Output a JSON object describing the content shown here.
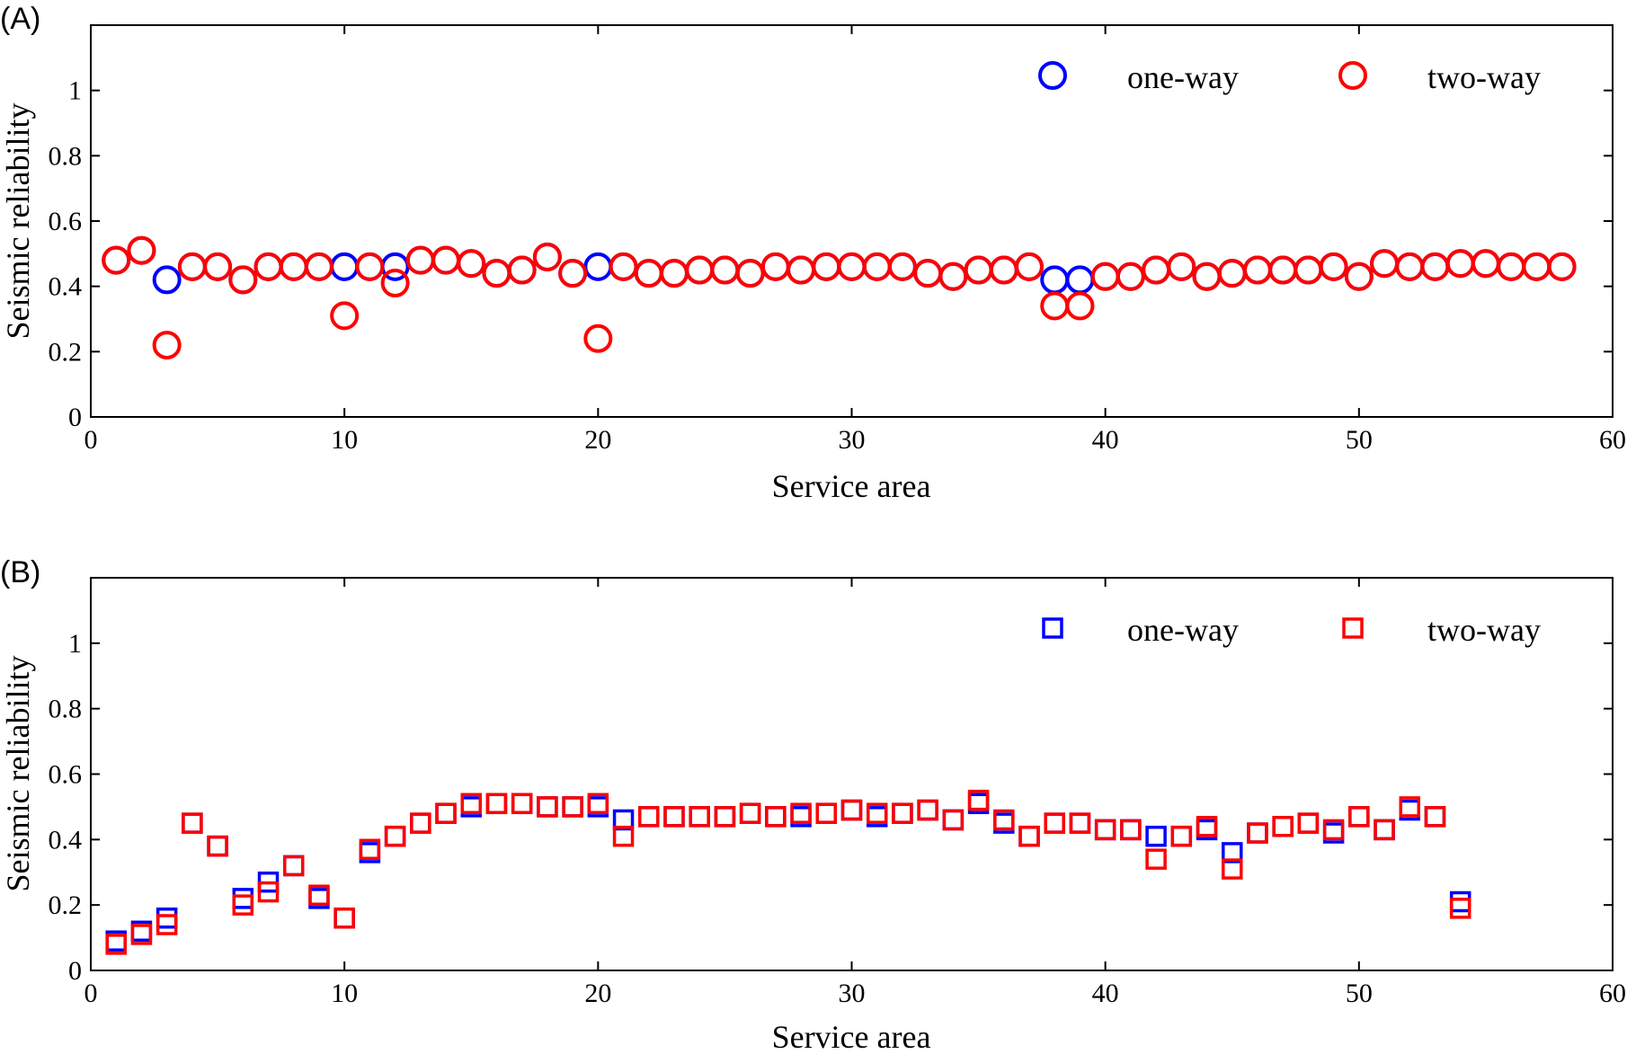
{
  "colors": {
    "one_way": "#0000ff",
    "two_way": "#ff0000"
  },
  "chart_data": [
    {
      "type": "scatter",
      "panel_label": "(A)",
      "marker": "circle",
      "xlabel": "Service area",
      "ylabel": "Seismic reliability",
      "xlim": [
        0,
        60
      ],
      "ylim": [
        0,
        1.2
      ],
      "xticks": [
        0,
        10,
        20,
        30,
        40,
        50,
        60
      ],
      "yticks": [
        0,
        0.2,
        0.4,
        0.6,
        0.8,
        1
      ],
      "grid": false,
      "legend_position": "top-right",
      "series": [
        {
          "name": "one-way",
          "color": "#0000ff",
          "x": [
            1,
            2,
            3,
            4,
            5,
            6,
            7,
            8,
            9,
            10,
            11,
            12,
            13,
            14,
            15,
            16,
            17,
            18,
            19,
            20,
            21,
            22,
            23,
            24,
            25,
            26,
            27,
            28,
            29,
            30,
            31,
            32,
            33,
            34,
            35,
            36,
            37,
            38,
            39,
            40,
            41,
            42,
            43,
            44,
            45,
            46,
            47,
            48,
            49,
            50,
            51,
            52,
            53,
            54,
            55,
            56,
            57,
            58
          ],
          "y": [
            0.48,
            0.51,
            0.42,
            0.46,
            0.46,
            0.42,
            0.46,
            0.46,
            0.46,
            0.46,
            0.46,
            0.46,
            0.48,
            0.48,
            0.47,
            0.44,
            0.45,
            0.49,
            0.44,
            0.46,
            0.46,
            0.44,
            0.44,
            0.45,
            0.45,
            0.44,
            0.46,
            0.45,
            0.46,
            0.46,
            0.46,
            0.46,
            0.44,
            0.43,
            0.45,
            0.45,
            0.46,
            0.42,
            0.42,
            0.43,
            0.43,
            0.45,
            0.46,
            0.43,
            0.44,
            0.45,
            0.45,
            0.45,
            0.46,
            0.43,
            0.47,
            0.46,
            0.46,
            0.47,
            0.47,
            0.46,
            0.46,
            0.46
          ]
        },
        {
          "name": "two-way",
          "color": "#ff0000",
          "x": [
            1,
            2,
            3,
            4,
            5,
            6,
            7,
            8,
            9,
            10,
            11,
            12,
            13,
            14,
            15,
            16,
            17,
            18,
            19,
            20,
            21,
            22,
            23,
            24,
            25,
            26,
            27,
            28,
            29,
            30,
            31,
            32,
            33,
            34,
            35,
            36,
            37,
            38,
            39,
            40,
            41,
            42,
            43,
            44,
            45,
            46,
            47,
            48,
            49,
            50,
            51,
            52,
            53,
            54,
            55,
            56,
            57,
            58
          ],
          "y": [
            0.48,
            0.51,
            0.22,
            0.46,
            0.46,
            0.42,
            0.46,
            0.46,
            0.46,
            0.31,
            0.46,
            0.41,
            0.48,
            0.48,
            0.47,
            0.44,
            0.45,
            0.49,
            0.44,
            0.24,
            0.46,
            0.44,
            0.44,
            0.45,
            0.45,
            0.44,
            0.46,
            0.45,
            0.46,
            0.46,
            0.46,
            0.46,
            0.44,
            0.43,
            0.45,
            0.45,
            0.46,
            0.34,
            0.34,
            0.43,
            0.43,
            0.45,
            0.46,
            0.43,
            0.44,
            0.45,
            0.45,
            0.45,
            0.46,
            0.43,
            0.47,
            0.46,
            0.46,
            0.47,
            0.47,
            0.46,
            0.46,
            0.46
          ]
        }
      ]
    },
    {
      "type": "scatter",
      "panel_label": "(B)",
      "marker": "square",
      "xlabel": "Service area",
      "ylabel": "Seismic reliability",
      "xlim": [
        0,
        60
      ],
      "ylim": [
        0,
        1.2
      ],
      "xticks": [
        0,
        10,
        20,
        30,
        40,
        50,
        60
      ],
      "yticks": [
        0,
        0.2,
        0.4,
        0.6,
        0.8,
        1
      ],
      "grid": false,
      "legend_position": "top-right",
      "series": [
        {
          "name": "one-way",
          "color": "#0000ff",
          "x": [
            1,
            2,
            3,
            4,
            5,
            6,
            7,
            8,
            9,
            10,
            11,
            12,
            13,
            14,
            15,
            16,
            17,
            18,
            19,
            20,
            21,
            22,
            23,
            24,
            25,
            26,
            27,
            28,
            29,
            30,
            31,
            32,
            33,
            34,
            35,
            36,
            37,
            38,
            39,
            40,
            41,
            42,
            43,
            44,
            45,
            46,
            47,
            48,
            49,
            50,
            51,
            52,
            53,
            54
          ],
          "y": [
            0.09,
            0.12,
            0.16,
            0.45,
            0.38,
            0.22,
            0.27,
            0.32,
            0.22,
            0.16,
            0.36,
            0.41,
            0.45,
            0.48,
            0.5,
            0.51,
            0.51,
            0.5,
            0.5,
            0.5,
            0.46,
            0.47,
            0.47,
            0.47,
            0.47,
            0.48,
            0.47,
            0.47,
            0.48,
            0.49,
            0.47,
            0.48,
            0.49,
            0.46,
            0.51,
            0.45,
            0.41,
            0.45,
            0.45,
            0.43,
            0.43,
            0.41,
            0.41,
            0.43,
            0.36,
            0.42,
            0.44,
            0.45,
            0.42,
            0.47,
            0.43,
            0.49,
            0.47,
            0.21
          ]
        },
        {
          "name": "two-way",
          "color": "#ff0000",
          "x": [
            1,
            2,
            3,
            4,
            5,
            6,
            7,
            8,
            9,
            10,
            11,
            12,
            13,
            14,
            15,
            16,
            17,
            18,
            19,
            20,
            21,
            22,
            23,
            24,
            25,
            26,
            27,
            28,
            29,
            30,
            31,
            32,
            33,
            34,
            35,
            36,
            37,
            38,
            39,
            40,
            41,
            42,
            43,
            44,
            45,
            46,
            47,
            48,
            49,
            50,
            51,
            52,
            53,
            54
          ],
          "y": [
            0.08,
            0.11,
            0.14,
            0.45,
            0.38,
            0.2,
            0.24,
            0.32,
            0.23,
            0.16,
            0.37,
            0.41,
            0.45,
            0.48,
            0.51,
            0.51,
            0.51,
            0.5,
            0.5,
            0.51,
            0.41,
            0.47,
            0.47,
            0.47,
            0.47,
            0.48,
            0.47,
            0.48,
            0.48,
            0.49,
            0.48,
            0.48,
            0.49,
            0.46,
            0.52,
            0.46,
            0.41,
            0.45,
            0.45,
            0.43,
            0.43,
            0.34,
            0.41,
            0.44,
            0.31,
            0.42,
            0.44,
            0.45,
            0.43,
            0.47,
            0.43,
            0.5,
            0.47,
            0.19
          ]
        }
      ]
    }
  ]
}
